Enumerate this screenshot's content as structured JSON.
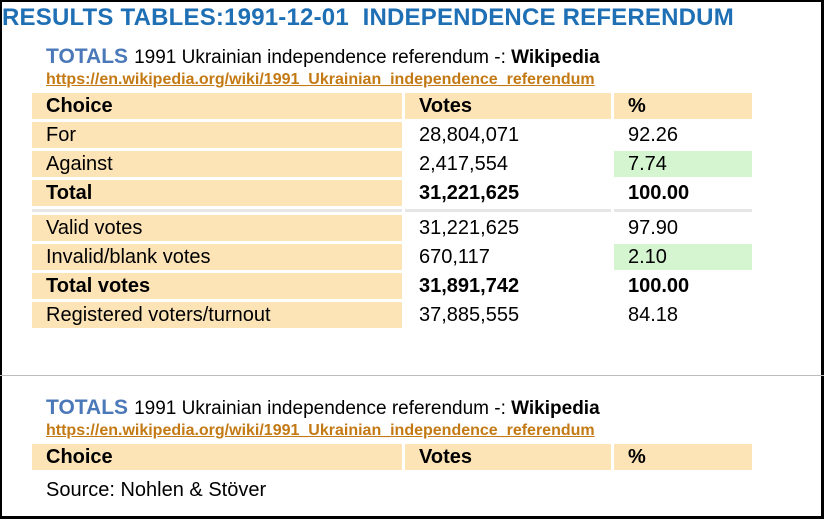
{
  "page_title": "RESULTS TABLES:1991-12-01  INDEPENDENCE REFERENDUM",
  "section1": {
    "totals_label": "TOTALS",
    "subtitle": "1991 Ukrainian independence referendum -: ",
    "source_name": "Wikipedia",
    "url": "https://en.wikipedia.org/wiki/1991_Ukrainian_independence_referendum",
    "columns": [
      "Choice",
      "Votes",
      "%"
    ],
    "rows": [
      {
        "choice": "For",
        "votes": "28,804,071",
        "percent": "92.26"
      },
      {
        "choice": "Against",
        "votes": "2,417,554",
        "percent": "7.74"
      },
      {
        "choice": "Total",
        "votes": "31,221,625",
        "percent": "100.00"
      },
      {
        "choice": "Valid votes",
        "votes": "31,221,625",
        "percent": "97.90"
      },
      {
        "choice": "Invalid/blank votes",
        "votes": "670,117",
        "percent": "2.10"
      },
      {
        "choice": "Total votes",
        "votes": "31,891,742",
        "percent": "100.00"
      },
      {
        "choice": "Registered voters/turnout",
        "votes": "37,885,555",
        "percent": "84.18"
      }
    ]
  },
  "section2": {
    "totals_label": "TOTALS",
    "subtitle": "1991 Ukrainian independence referendum -: ",
    "source_name": "Wikipedia",
    "url": "https://en.wikipedia.org/wiki/1991_Ukrainian_independence_referendum",
    "columns": [
      "Choice",
      "Votes",
      "%"
    ],
    "source_note": "Source: Nohlen & Stöver"
  },
  "colors": {
    "title": "#1f6fb5",
    "totals": "#4b78b8",
    "link": "#c47a14",
    "label_fill": "#fce4b7",
    "highlight_fill": "#d5f5d0"
  }
}
